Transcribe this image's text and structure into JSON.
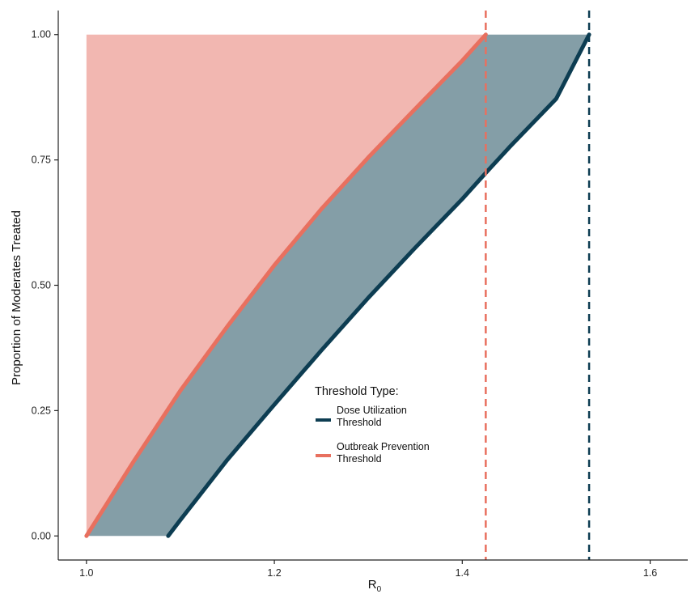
{
  "chart_data": {
    "type": "area",
    "xlabel": "R",
    "xlabel_subscript": "0",
    "ylabel": "Proportion of Moderates Treated",
    "xlim": [
      0.97,
      1.64
    ],
    "ylim": [
      -0.048,
      1.048
    ],
    "x_ticks": [
      1.0,
      1.2,
      1.4,
      1.6
    ],
    "x_tick_labels": [
      "1.0",
      "1.2",
      "1.4",
      "1.6"
    ],
    "y_ticks": [
      0.0,
      0.25,
      0.5,
      0.75,
      1.0
    ],
    "y_tick_labels": [
      "0.00",
      "0.25",
      "0.50",
      "0.75",
      "1.00"
    ],
    "grid": false,
    "legend": {
      "title": "Threshold Type:",
      "position": "bottom-center",
      "entries": [
        {
          "label_line1": "Dose Utilization",
          "label_line2": "Threshold",
          "color": "#0d3d52"
        },
        {
          "label_line1": "Outbreak Prevention",
          "label_line2": "Threshold",
          "color": "#e8705f"
        }
      ]
    },
    "series": [
      {
        "name": "Outbreak Prevention Threshold",
        "color": "#e8705f",
        "x": [
          1.0,
          1.05,
          1.1,
          1.15,
          1.2,
          1.25,
          1.3,
          1.35,
          1.4,
          1.425
        ],
        "y": [
          0.0,
          0.148,
          0.29,
          0.418,
          0.54,
          0.652,
          0.755,
          0.852,
          0.948,
          1.0
        ]
      },
      {
        "name": "Dose Utilization Threshold",
        "color": "#0d3d52",
        "x": [
          1.087,
          1.1,
          1.15,
          1.2,
          1.25,
          1.3,
          1.35,
          1.4,
          1.425,
          1.45,
          1.5,
          1.535
        ],
        "y": [
          0.0,
          0.032,
          0.152,
          0.262,
          0.37,
          0.475,
          0.575,
          0.672,
          0.724,
          0.775,
          0.872,
          1.0
        ]
      }
    ],
    "vlines": [
      {
        "x": 1.425,
        "color": "#e8705f",
        "style": "dashed"
      },
      {
        "x": 1.535,
        "color": "#0d3d52",
        "style": "dashed"
      }
    ],
    "fills": {
      "above_outbreak": "#f2b7b1",
      "between": "#849ea7"
    }
  }
}
